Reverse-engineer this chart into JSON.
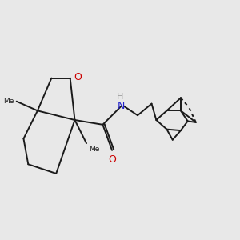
{
  "background_color": "#e8e8e8",
  "bond_color": "#1a1a1a",
  "oxygen_color": "#cc0000",
  "nitrogen_color": "#2222cc",
  "hydrogen_color": "#888888",
  "lw": 1.4,
  "fig_width": 3.0,
  "fig_height": 3.0,
  "xlim": [
    0,
    1
  ],
  "ylim": [
    0,
    1
  ]
}
